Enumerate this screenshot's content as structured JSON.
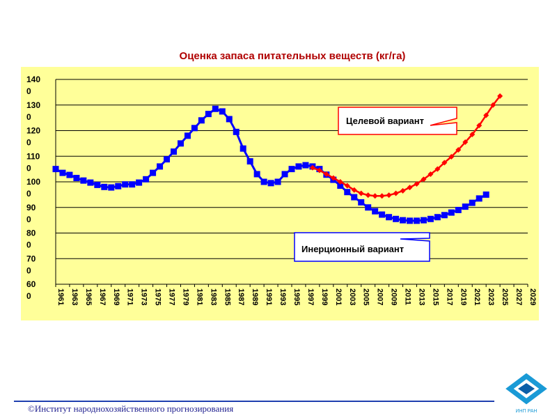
{
  "chart_data": {
    "type": "line",
    "title": "Оценка запаса питательных веществ (кг/га)",
    "xlabel": "",
    "ylabel": "",
    "ylim": [
      600,
      1400
    ],
    "y_ticks": [
      {
        "value": 1400,
        "line1": "140",
        "line2": "0"
      },
      {
        "value": 1300,
        "line1": "130",
        "line2": "0"
      },
      {
        "value": 1200,
        "line1": "120",
        "line2": "0"
      },
      {
        "value": 1100,
        "line1": "110",
        "line2": "0"
      },
      {
        "value": 1000,
        "line1": "100",
        "line2": "0"
      },
      {
        "value": 900,
        "line1": "90",
        "line2": "0"
      },
      {
        "value": 800,
        "line1": "80",
        "line2": "0"
      },
      {
        "value": 700,
        "line1": "70",
        "line2": "0"
      },
      {
        "value": 600,
        "line1": "60",
        "line2": "0"
      }
    ],
    "x_start": 1961,
    "x_end": 2029,
    "x_step": 2,
    "series": [
      {
        "name": "Инерционный вариант",
        "color": "#0000ff",
        "marker": "square",
        "start_year": 1961,
        "values": [
          1050,
          1035,
          1027,
          1015,
          1005,
          997,
          988,
          980,
          978,
          983,
          990,
          990,
          997,
          1010,
          1035,
          1060,
          1088,
          1118,
          1150,
          1180,
          1210,
          1240,
          1265,
          1285,
          1275,
          1245,
          1195,
          1130,
          1080,
          1030,
          1000,
          995,
          1000,
          1030,
          1050,
          1060,
          1065,
          1060,
          1050,
          1028,
          1008,
          985,
          960,
          940,
          920,
          900,
          885,
          872,
          862,
          855,
          850,
          848,
          848,
          850,
          855,
          862,
          870,
          880,
          890,
          903,
          918,
          935,
          950
        ]
      },
      {
        "name": "Целевой вариант",
        "color": "#ff0000",
        "marker": "diamond",
        "start_year": 1998,
        "values": [
          1055,
          1045,
          1030,
          1015,
          1000,
          985,
          968,
          955,
          948,
          945,
          945,
          948,
          955,
          965,
          978,
          992,
          1010,
          1030,
          1050,
          1075,
          1098,
          1125,
          1155,
          1185,
          1220,
          1260,
          1300,
          1335
        ]
      }
    ],
    "annotations": [
      {
        "text": "Целевой вариант",
        "color": "#ff0000"
      },
      {
        "text": "Инерционный вариант",
        "color": "#0000ff"
      }
    ]
  },
  "footer": {
    "copyright": "©Институт народнохозяйственного прогнозирования"
  },
  "logo": {
    "text": "ИНП РАН",
    "color": "#1a9ad6"
  }
}
